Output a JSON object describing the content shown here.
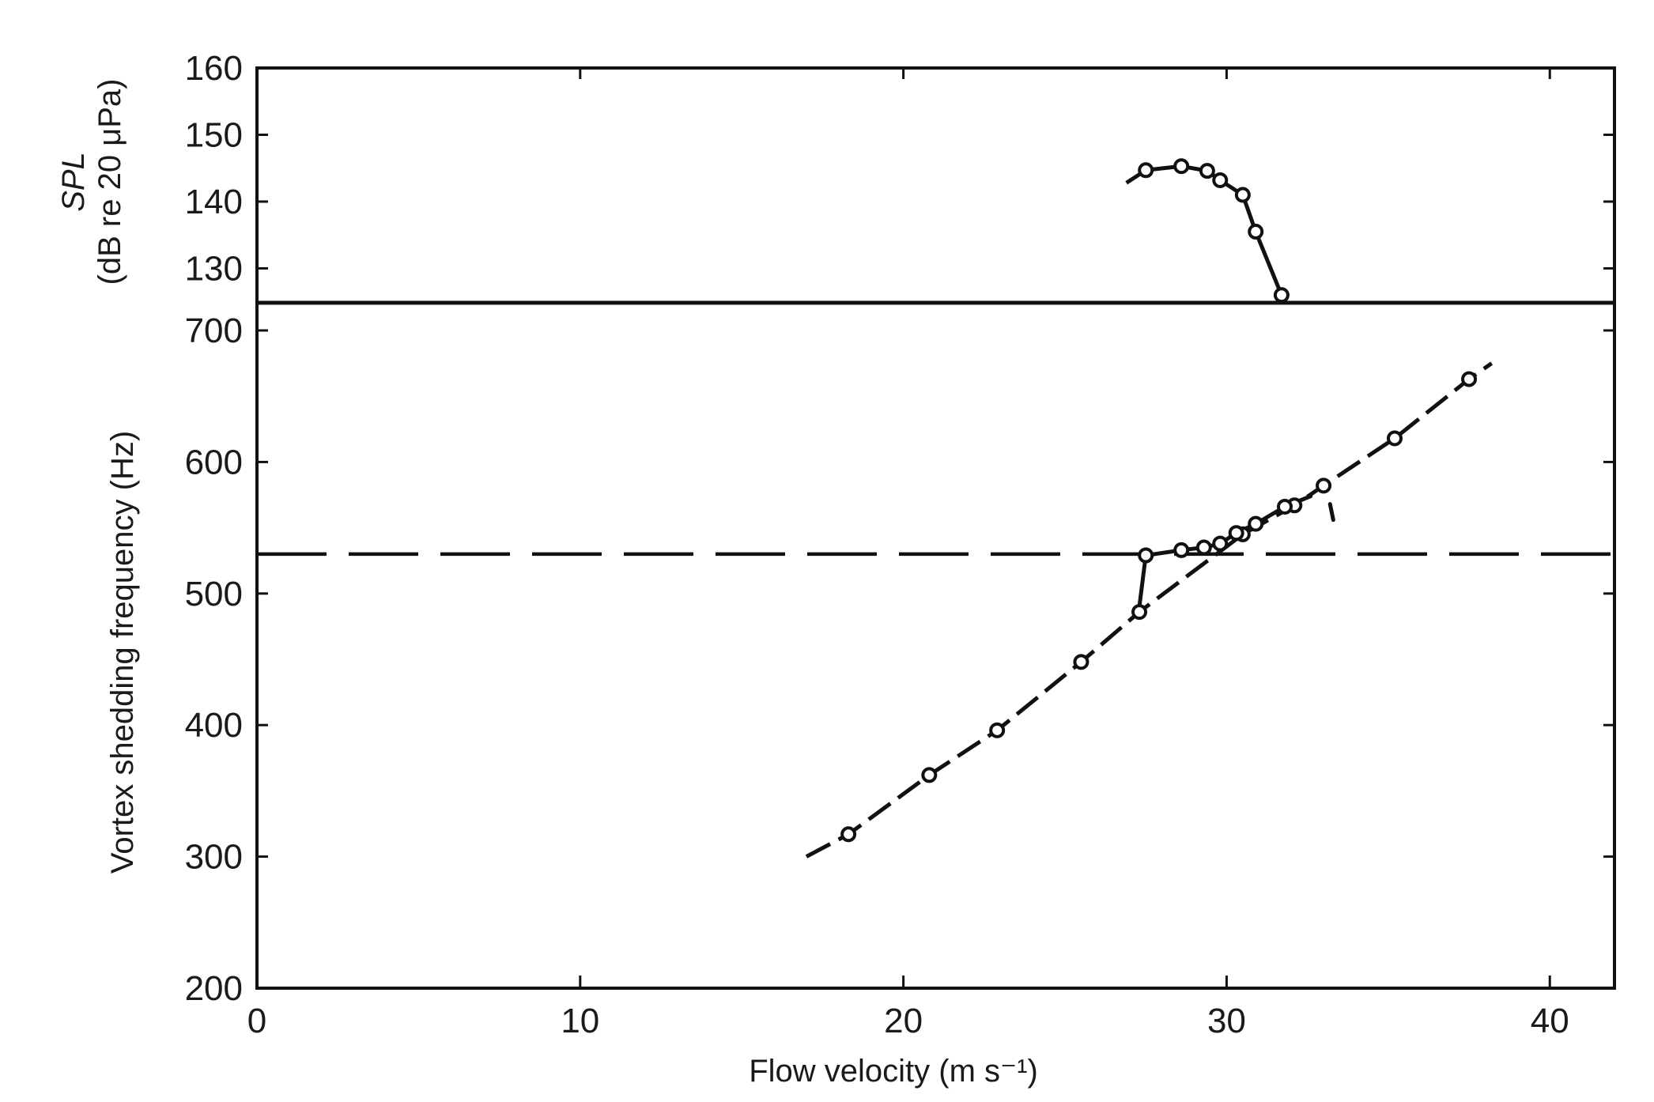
{
  "chart_data": [
    {
      "type": "line",
      "panel": "top",
      "ylabel_line1": "SPL",
      "ylabel_line2": "(dB re 20 μPa)",
      "ylim": [
        125,
        160
      ],
      "yticks": [
        130,
        140,
        150,
        160
      ],
      "xlim": [
        0,
        42
      ],
      "grid": false,
      "series": [
        {
          "marker": "open-circle",
          "points": [
            {
              "x": 27.5,
              "y": 144.7
            },
            {
              "x": 28.6,
              "y": 145.3
            },
            {
              "x": 29.4,
              "y": 144.6
            },
            {
              "x": 29.8,
              "y": 143.2
            },
            {
              "x": 30.5,
              "y": 141.0
            },
            {
              "x": 30.9,
              "y": 135.5
            },
            {
              "x": 31.7,
              "y": 126.0
            }
          ]
        }
      ]
    },
    {
      "type": "line",
      "panel": "bottom",
      "xlabel": "Flow velocity (m s⁻¹)",
      "ylabel": "Vortex shedding frequency (Hz)",
      "xlim": [
        0,
        42
      ],
      "ylim": [
        200,
        710
      ],
      "xticks": [
        0,
        10,
        20,
        30,
        40
      ],
      "yticks": [
        200,
        300,
        400,
        500,
        600,
        700
      ],
      "grid": false,
      "reference_line_y": 530,
      "series": [
        {
          "name": "",
          "marker": "open-circle",
          "points": [
            {
              "x": 18.3,
              "y": 317
            },
            {
              "x": 20.8,
              "y": 362
            },
            {
              "x": 22.9,
              "y": 396
            },
            {
              "x": 25.5,
              "y": 448
            },
            {
              "x": 27.3,
              "y": 486
            },
            {
              "x": 30.5,
              "y": 545
            },
            {
              "x": 32.1,
              "y": 567
            },
            {
              "x": 33.0,
              "y": 582
            },
            {
              "x": 35.2,
              "y": 618
            },
            {
              "x": 37.5,
              "y": 663
            }
          ]
        },
        {
          "name": "",
          "marker": "open-circle",
          "points": [
            {
              "x": 27.5,
              "y": 529
            },
            {
              "x": 28.6,
              "y": 533
            },
            {
              "x": 29.3,
              "y": 535
            },
            {
              "x": 29.8,
              "y": 538
            },
            {
              "x": 30.3,
              "y": 546
            },
            {
              "x": 30.9,
              "y": 553
            },
            {
              "x": 31.8,
              "y": 566
            }
          ]
        }
      ]
    }
  ]
}
